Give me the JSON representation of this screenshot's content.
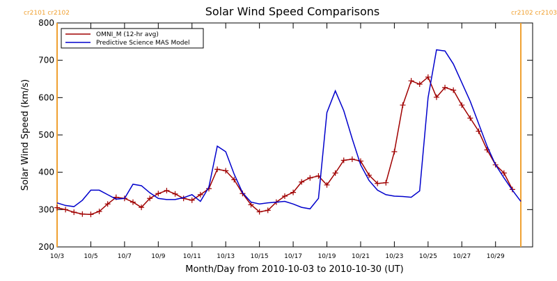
{
  "chart_data": {
    "type": "line",
    "title": "Solar Wind Speed Comparisons",
    "xlabel": "Month/Day from 2010-10-03 to 2010-10-30 (UT)",
    "ylabel": "Solar Wind Speed (km/s)",
    "xlim": [
      0,
      28.2
    ],
    "ylim": [
      200,
      800
    ],
    "yticks": [
      200,
      300,
      400,
      500,
      600,
      700,
      800
    ],
    "xticks": [
      {
        "value": 0,
        "label": "10/3"
      },
      {
        "value": 2,
        "label": "10/5"
      },
      {
        "value": 4,
        "label": "10/7"
      },
      {
        "value": 6,
        "label": "10/9"
      },
      {
        "value": 8,
        "label": "10/11"
      },
      {
        "value": 10,
        "label": "10/13"
      },
      {
        "value": 12,
        "label": "10/15"
      },
      {
        "value": 14,
        "label": "10/17"
      },
      {
        "value": 16,
        "label": "10/19"
      },
      {
        "value": 18,
        "label": "10/21"
      },
      {
        "value": 20,
        "label": "10/23"
      },
      {
        "value": 22,
        "label": "10/25"
      },
      {
        "value": 24,
        "label": "10/27"
      },
      {
        "value": 26,
        "label": "10/29"
      }
    ],
    "markers": [
      {
        "x": 0,
        "label": "cr2101 cr2102"
      },
      {
        "x": 27.5,
        "label": "cr2102 cr2103"
      }
    ],
    "marker_color": "#f0a030",
    "legend": "upper left",
    "series": [
      {
        "name": "OMNI_M (12-hr avg)",
        "color": "#a00000",
        "marker": "plus",
        "x": [
          0,
          0.5,
          1,
          1.5,
          2,
          2.5,
          3,
          3.5,
          4,
          4.5,
          5,
          5.5,
          6,
          6.5,
          7,
          7.5,
          8,
          8.5,
          9,
          9.5,
          10,
          10.5,
          11,
          11.5,
          12,
          12.5,
          13,
          13.5,
          14,
          14.5,
          15,
          15.5,
          16,
          16.5,
          17,
          17.5,
          18,
          18.5,
          19,
          19.5,
          20,
          20.5,
          21,
          21.5,
          22,
          22.5,
          23,
          23.5,
          24,
          24.5,
          25,
          25.5,
          26,
          26.5,
          27
        ],
        "values": [
          305,
          300,
          293,
          288,
          287,
          295,
          315,
          333,
          330,
          320,
          306,
          330,
          343,
          351,
          342,
          330,
          325,
          340,
          356,
          408,
          404,
          380,
          343,
          313,
          294,
          298,
          320,
          336,
          346,
          374,
          385,
          390,
          366,
          398,
          432,
          435,
          430,
          392,
          370,
          372,
          455,
          580,
          645,
          636,
          655,
          601,
          627,
          620,
          580,
          545,
          510,
          460,
          420,
          398,
          354
        ]
      },
      {
        "name": "Predictive Science MAS Model",
        "color": "#0000cc",
        "x": [
          0,
          0.5,
          1,
          1.5,
          2,
          2.5,
          3,
          3.5,
          4,
          4.5,
          5,
          5.5,
          6,
          6.5,
          7,
          7.5,
          8,
          8.5,
          9,
          9.5,
          10,
          10.5,
          11,
          11.5,
          12,
          12.5,
          13,
          13.5,
          14,
          14.5,
          15,
          15.5,
          16,
          16.5,
          17,
          17.5,
          18,
          18.5,
          19,
          19.5,
          20,
          20.5,
          21,
          21.5,
          22,
          22.5,
          23,
          23.5,
          24,
          24.5,
          25,
          25.5,
          26,
          26.5,
          27,
          27.5
        ],
        "values": [
          318,
          311,
          308,
          325,
          352,
          352,
          340,
          328,
          330,
          368,
          364,
          345,
          330,
          327,
          327,
          332,
          340,
          322,
          360,
          470,
          455,
          395,
          345,
          320,
          315,
          318,
          320,
          322,
          315,
          306,
          302,
          330,
          560,
          618,
          565,
          490,
          420,
          378,
          352,
          340,
          336,
          335,
          333,
          350,
          600,
          728,
          725,
          690,
          640,
          590,
          530,
          470,
          420,
          385,
          352,
          322
        ]
      }
    ]
  }
}
